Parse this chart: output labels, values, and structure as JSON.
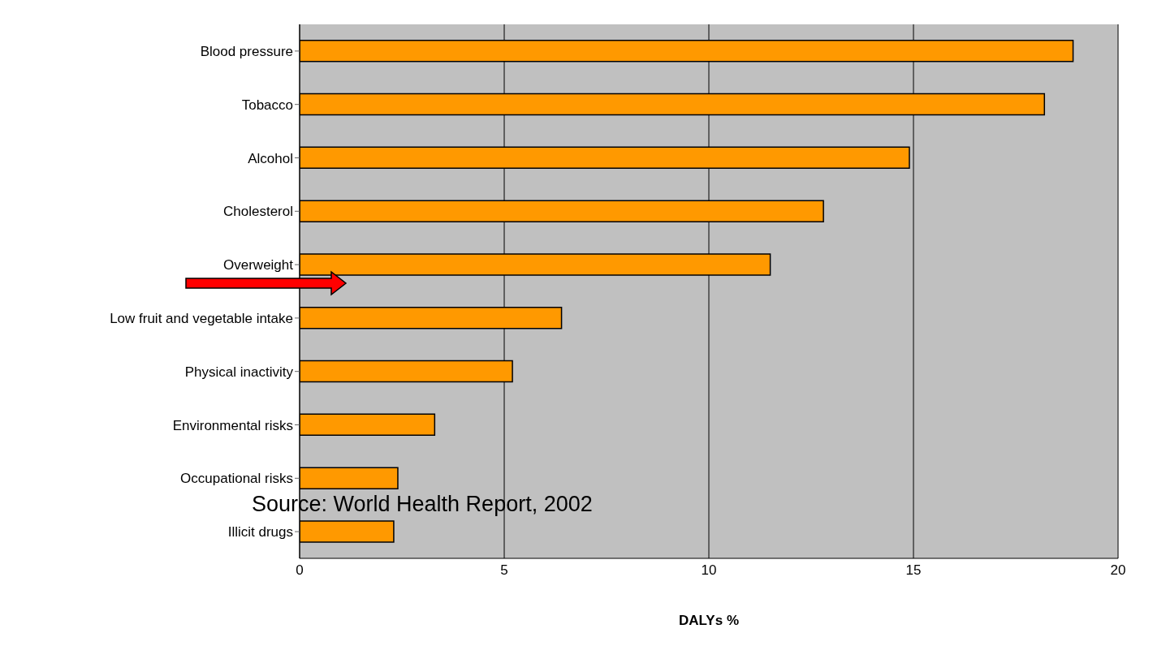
{
  "chart_data": {
    "type": "bar",
    "orientation": "horizontal",
    "xlabel": "DALYs %",
    "categories": [
      "Blood pressure",
      "Tobacco",
      "Alcohol",
      "Cholesterol",
      "Overweight",
      "Low fruit and vegetable intake",
      "Physical inactivity",
      "Environmental risks",
      "Occupational risks",
      "Illicit drugs"
    ],
    "values": [
      18.9,
      18.2,
      14.9,
      12.8,
      11.5,
      6.4,
      5.2,
      3.3,
      2.4,
      2.3
    ],
    "color": "#ff9900",
    "xlim": [
      0,
      20
    ],
    "xticks": [
      0,
      5,
      10,
      15,
      20
    ],
    "grid": "x",
    "annotations": [
      "Source: World Health Report, 2002"
    ]
  }
}
